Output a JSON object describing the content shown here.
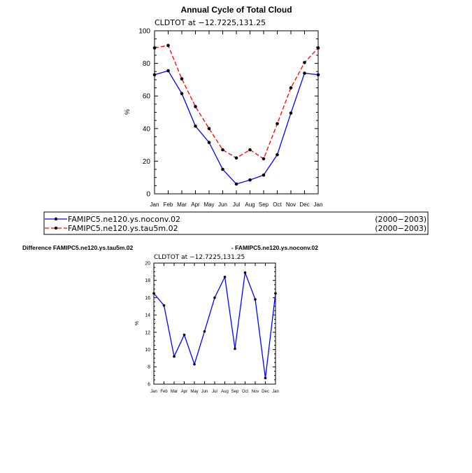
{
  "chart_data": [
    {
      "type": "line",
      "title": "Annual Cycle of Total Cloud",
      "subtitle": "CLDTOT at −12.7225,131.25",
      "xlabel": "",
      "ylabel": "%",
      "categories": [
        "Jan",
        "Feb",
        "Mar",
        "Apr",
        "May",
        "Jun",
        "Jul",
        "Aug",
        "Sep",
        "Oct",
        "Nov",
        "Dec",
        "Jan"
      ],
      "ylim": [
        0,
        100
      ],
      "yticks": [
        "0",
        "20",
        "40",
        "60",
        "80",
        "100"
      ],
      "series": [
        {
          "name": "FAMIPC5.ne120.ys.noconv.02",
          "period": "(2000−2003)",
          "color": "#0000ff",
          "dash": "solid",
          "values": [
            73,
            75.5,
            61.5,
            41.5,
            31.5,
            15,
            6,
            8.5,
            11.5,
            24,
            49.5,
            74,
            73
          ]
        },
        {
          "name": "FAMIPC5.ne120.ys.tau5m.02",
          "period": "(2000−2003)",
          "color": "#ff0000",
          "dash": "dashed",
          "values": [
            89.5,
            91,
            70.5,
            53.5,
            40,
            27,
            22,
            27,
            21.5,
            43,
            65,
            80.5,
            89.5
          ]
        }
      ],
      "grid": false
    },
    {
      "type": "line",
      "title_left": "Difference FAMIPC5.ne120.ys.tau5m.02",
      "title_right": "- FAMIPC5.ne120.ys.noconv.02",
      "subtitle": "CLDTOT at −12.7225,131.25",
      "xlabel": "",
      "ylabel": "%",
      "categories": [
        "Jan",
        "Feb",
        "Mar",
        "Apr",
        "May",
        "Jun",
        "Jul",
        "Aug",
        "Sep",
        "Oct",
        "Nov",
        "Dec",
        "Jan"
      ],
      "ylim": [
        6,
        20
      ],
      "yticks": [
        "6",
        "8",
        "10",
        "12",
        "14",
        "16",
        "18",
        "20"
      ],
      "series": [
        {
          "color": "#0000ff",
          "values": [
            16.5,
            15.1,
            9.2,
            11.7,
            8.3,
            12.1,
            16,
            18.4,
            10.1,
            18.9,
            15.8,
            6.7,
            16.5
          ]
        }
      ],
      "grid": false
    }
  ]
}
